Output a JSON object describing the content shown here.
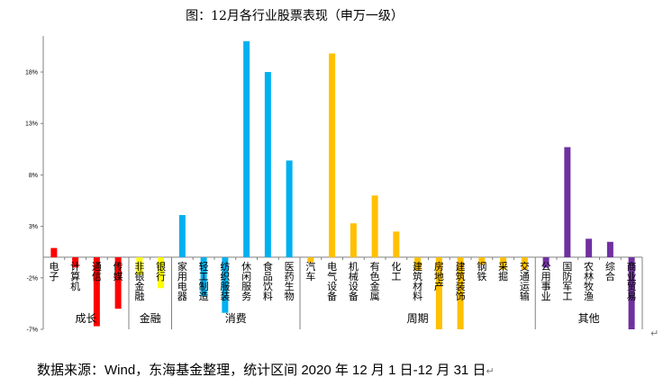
{
  "chart_data": {
    "type": "bar",
    "title": "图：12月各行业股票表现（申万一级）",
    "ylim": [
      -7,
      21.5
    ],
    "yticks": [
      -7,
      -2,
      3,
      8,
      13,
      18
    ],
    "ytick_labels": [
      "-7%",
      "-2%",
      "3%",
      "8%",
      "13%",
      "18%"
    ],
    "categories": [
      "电子",
      "计算机",
      "通信",
      "传媒",
      "非银金融",
      "银行",
      "家用电器",
      "轻工制造",
      "纺织服装",
      "休闲服务",
      "食品饮料",
      "医药生物",
      "汽车",
      "电气设备",
      "机械设备",
      "有色金属",
      "化工",
      "建筑材料",
      "房地产",
      "建筑装饰",
      "钢铁",
      "采掘",
      "交通运输",
      "公用事业",
      "国防军工",
      "农林牧渔",
      "综合",
      "商业贸易"
    ],
    "values": [
      0.9,
      -1.0,
      -6.7,
      -5.0,
      -1.7,
      -3.0,
      4.1,
      -3.8,
      -5.4,
      21.0,
      18.0,
      9.4,
      -0.5,
      19.8,
      3.3,
      6.0,
      2.5,
      -1.3,
      -7.0,
      -7.0,
      -0.7,
      -1.2,
      -1.2,
      -1.0,
      10.7,
      1.8,
      1.5,
      -7.0
    ],
    "colors": [
      "#ff0000",
      "#ff0000",
      "#ff0000",
      "#ff0000",
      "#ffff00",
      "#ffff00",
      "#00b0f0",
      "#00b0f0",
      "#00b0f0",
      "#00b0f0",
      "#00b0f0",
      "#00b0f0",
      "#ffc000",
      "#ffc000",
      "#ffc000",
      "#ffc000",
      "#ffc000",
      "#ffc000",
      "#ffc000",
      "#ffc000",
      "#ffc000",
      "#ffc000",
      "#ffc000",
      "#7030a0",
      "#7030a0",
      "#7030a0",
      "#7030a0",
      "#7030a0"
    ],
    "groups": [
      {
        "name": "成长",
        "start": 0,
        "end": 3
      },
      {
        "name": "金融",
        "start": 4,
        "end": 5
      },
      {
        "name": "消费",
        "start": 6,
        "end": 11
      },
      {
        "name": "周期",
        "start": 12,
        "end": 22
      },
      {
        "name": "其他",
        "start": 23,
        "end": 27
      }
    ]
  },
  "source_text": "数据来源：Wind，东海基金整理，统计区间 2020 年 12 月 1 日-12 月 31 日",
  "paragraph_mark": "↵"
}
